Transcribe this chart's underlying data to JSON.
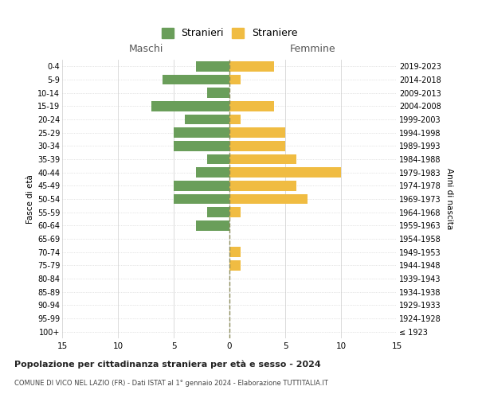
{
  "age_groups": [
    "100+",
    "95-99",
    "90-94",
    "85-89",
    "80-84",
    "75-79",
    "70-74",
    "65-69",
    "60-64",
    "55-59",
    "50-54",
    "45-49",
    "40-44",
    "35-39",
    "30-34",
    "25-29",
    "20-24",
    "15-19",
    "10-14",
    "5-9",
    "0-4"
  ],
  "birth_years": [
    "≤ 1923",
    "1924-1928",
    "1929-1933",
    "1934-1938",
    "1939-1943",
    "1944-1948",
    "1949-1953",
    "1954-1958",
    "1959-1963",
    "1964-1968",
    "1969-1973",
    "1974-1978",
    "1979-1983",
    "1984-1988",
    "1989-1993",
    "1994-1998",
    "1999-2003",
    "2004-2008",
    "2009-2013",
    "2014-2018",
    "2019-2023"
  ],
  "males": [
    0,
    0,
    0,
    0,
    0,
    0,
    0,
    0,
    3,
    2,
    5,
    5,
    3,
    2,
    5,
    5,
    4,
    7,
    2,
    6,
    3
  ],
  "females": [
    0,
    0,
    0,
    0,
    0,
    1,
    1,
    0,
    0,
    1,
    7,
    6,
    10,
    6,
    5,
    5,
    1,
    4,
    0,
    1,
    4
  ],
  "male_color": "#6a9e5a",
  "female_color": "#f0bc42",
  "background_color": "#ffffff",
  "grid_color": "#cccccc",
  "dashed_line_color": "#8b8b5a",
  "title": "Popolazione per cittadinanza straniera per età e sesso - 2024",
  "subtitle": "COMUNE DI VICO NEL LAZIO (FR) - Dati ISTAT al 1° gennaio 2024 - Elaborazione TUTTITALIA.IT",
  "label_maschi": "Maschi",
  "label_femmine": "Femmine",
  "ylabel_left": "Fasce di età",
  "ylabel_right": "Anni di nascita",
  "legend_males": "Stranieri",
  "legend_females": "Straniere",
  "xlim": 15,
  "bar_height": 0.75
}
